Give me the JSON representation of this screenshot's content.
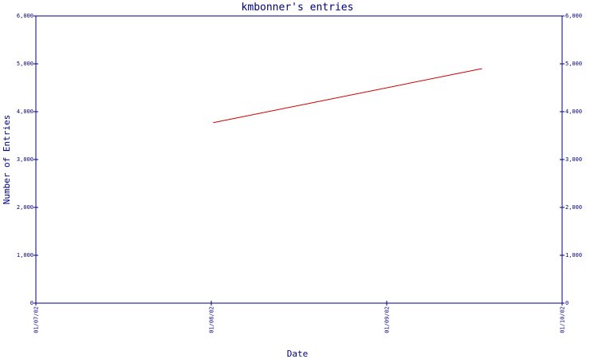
{
  "chart_data": {
    "type": "line",
    "title": "kmbonner's entries",
    "xlabel": "Date",
    "ylabel": "Number of Entries",
    "x_ticks": [
      "01/07/02",
      "01/08/02",
      "01/09/02",
      "01/10/02"
    ],
    "y_ticks": [
      "0",
      "1,000",
      "2,000",
      "3,000",
      "4,000",
      "5,000",
      "6,000"
    ],
    "ylim": [
      0,
      6000
    ],
    "xlim": [
      "2002-07-01",
      "2002-10-01"
    ],
    "grid": false,
    "colors": {
      "axis": "#000080",
      "series": "#cc0000"
    },
    "series": [
      {
        "x": [
          "2002-08-01",
          "2002-09-17"
        ],
        "values": [
          3770,
          4900
        ]
      }
    ]
  }
}
